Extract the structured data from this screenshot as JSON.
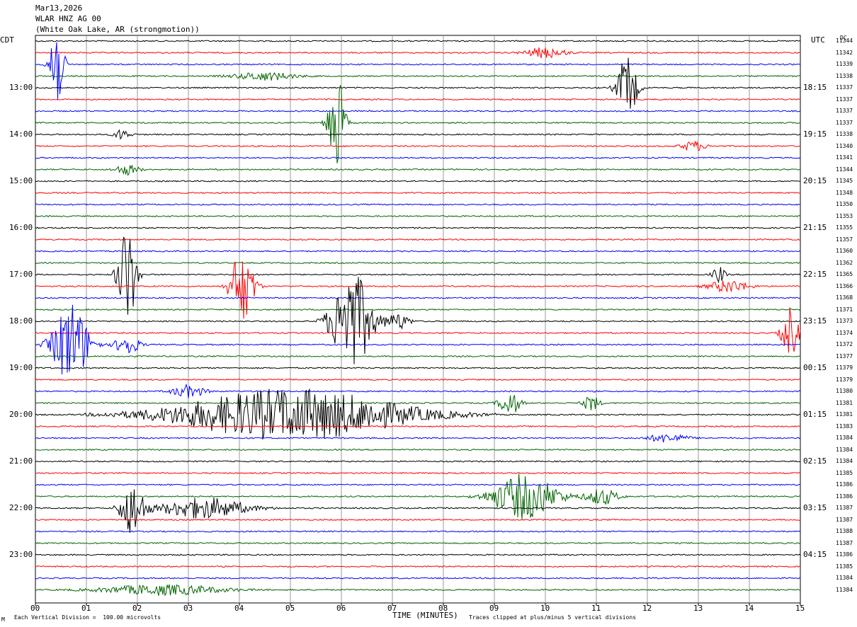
{
  "header": {
    "date": "Mar13,2026",
    "channel": "WLAR HNZ AG 00",
    "location": "(White Oak Lake, AR (strongmotion))"
  },
  "left_zone": "CDT",
  "right_zone": "UTC",
  "dc_label": "DC",
  "footer": {
    "scale_note": "Each Vertical Division =  100.00 microvolts",
    "clip_note": "Traces clipped at plus/minus 5 vertical divisions",
    "corner_mark": "M"
  },
  "colors": {
    "trace_cycle": [
      "#000000",
      "#ff0000",
      "#0000ff",
      "#006400"
    ],
    "grid": "#999999"
  },
  "chart_data": {
    "type": "seismogram",
    "xlabel": "TIME (MINUTES)",
    "x_ticks": [
      "00",
      "01",
      "02",
      "03",
      "04",
      "05",
      "06",
      "07",
      "08",
      "09",
      "10",
      "11",
      "12",
      "13",
      "14",
      "15"
    ],
    "xlim": [
      0,
      15
    ],
    "trace_count": 48,
    "minutes_per_trace": 15,
    "left_hour_labels": [
      {
        "trace": 4,
        "text": "13:00"
      },
      {
        "trace": 8,
        "text": "14:00"
      },
      {
        "trace": 12,
        "text": "15:00"
      },
      {
        "trace": 16,
        "text": "16:00"
      },
      {
        "trace": 20,
        "text": "17:00"
      },
      {
        "trace": 24,
        "text": "18:00"
      },
      {
        "trace": 28,
        "text": "19:00"
      },
      {
        "trace": 32,
        "text": "20:00"
      },
      {
        "trace": 36,
        "text": "21:00"
      },
      {
        "trace": 40,
        "text": "22:00"
      },
      {
        "trace": 44,
        "text": "23:00"
      }
    ],
    "right_hour_labels": [
      {
        "trace": 4,
        "text": "18:15"
      },
      {
        "trace": 8,
        "text": "19:15"
      },
      {
        "trace": 12,
        "text": "20:15"
      },
      {
        "trace": 16,
        "text": "21:15"
      },
      {
        "trace": 20,
        "text": "22:15"
      },
      {
        "trace": 24,
        "text": "23:15"
      },
      {
        "trace": 28,
        "text": "00:15"
      },
      {
        "trace": 32,
        "text": "01:15"
      },
      {
        "trace": 36,
        "text": "02:15"
      },
      {
        "trace": 40,
        "text": "03:15"
      },
      {
        "trace": 44,
        "text": "04:15"
      }
    ],
    "dc_offsets": [
      11344,
      11342,
      11339,
      11338,
      11337,
      11337,
      11337,
      11337,
      11338,
      11340,
      11341,
      11344,
      11345,
      11348,
      11350,
      11353,
      11355,
      11357,
      11360,
      11362,
      11365,
      11366,
      11368,
      11371,
      11373,
      11374,
      11372,
      11377,
      11379,
      11379,
      11380,
      11381,
      11381,
      11383,
      11384,
      11384,
      11384,
      11385,
      11386,
      11386,
      11387,
      11387,
      11388,
      11387,
      11386,
      11385,
      11384,
      11384
    ],
    "events": [
      {
        "trace": 2,
        "minute": 0.4,
        "amp": 5,
        "dur": 0.35
      },
      {
        "trace": 1,
        "minute": 10.0,
        "amp": 0.5,
        "dur": 1.0
      },
      {
        "trace": 3,
        "minute": 4.5,
        "amp": 0.4,
        "dur": 1.5
      },
      {
        "trace": 4,
        "minute": 11.6,
        "amp": 3,
        "dur": 0.5
      },
      {
        "trace": 7,
        "minute": 5.9,
        "amp": 5,
        "dur": 0.4
      },
      {
        "trace": 8,
        "minute": 1.7,
        "amp": 0.5,
        "dur": 0.4
      },
      {
        "trace": 9,
        "minute": 12.9,
        "amp": 0.5,
        "dur": 0.6
      },
      {
        "trace": 11,
        "minute": 1.8,
        "amp": 0.5,
        "dur": 0.6
      },
      {
        "trace": 20,
        "minute": 1.8,
        "amp": 5,
        "dur": 0.45
      },
      {
        "trace": 21,
        "minute": 4.05,
        "amp": 3.5,
        "dur": 0.6
      },
      {
        "trace": 20,
        "minute": 13.4,
        "amp": 0.8,
        "dur": 0.3
      },
      {
        "trace": 21,
        "minute": 13.6,
        "amp": 0.6,
        "dur": 1.0
      },
      {
        "trace": 24,
        "minute": 6.2,
        "amp": 5,
        "dur": 1.0
      },
      {
        "trace": 24,
        "minute": 7.1,
        "amp": 0.8,
        "dur": 0.6
      },
      {
        "trace": 25,
        "minute": 14.8,
        "amp": 2.5,
        "dur": 0.4
      },
      {
        "trace": 26,
        "minute": 0.7,
        "amp": 4,
        "dur": 0.9
      },
      {
        "trace": 26,
        "minute": 1.8,
        "amp": 1.0,
        "dur": 0.6
      },
      {
        "trace": 30,
        "minute": 3.0,
        "amp": 0.6,
        "dur": 0.8
      },
      {
        "trace": 31,
        "minute": 9.3,
        "amp": 1.2,
        "dur": 0.5
      },
      {
        "trace": 31,
        "minute": 10.9,
        "amp": 0.8,
        "dur": 0.4
      },
      {
        "trace": 32,
        "minute": 5.0,
        "amp": 2.5,
        "dur": 5.8
      },
      {
        "trace": 34,
        "minute": 12.4,
        "amp": 0.4,
        "dur": 1.0
      },
      {
        "trace": 39,
        "minute": 9.6,
        "amp": 2.2,
        "dur": 1.6
      },
      {
        "trace": 39,
        "minute": 11.1,
        "amp": 0.8,
        "dur": 0.8
      },
      {
        "trace": 40,
        "minute": 1.9,
        "amp": 2.5,
        "dur": 0.6
      },
      {
        "trace": 40,
        "minute": 3.3,
        "amp": 1.0,
        "dur": 2.2
      },
      {
        "trace": 47,
        "minute": 2.5,
        "amp": 0.5,
        "dur": 3.0
      }
    ]
  }
}
